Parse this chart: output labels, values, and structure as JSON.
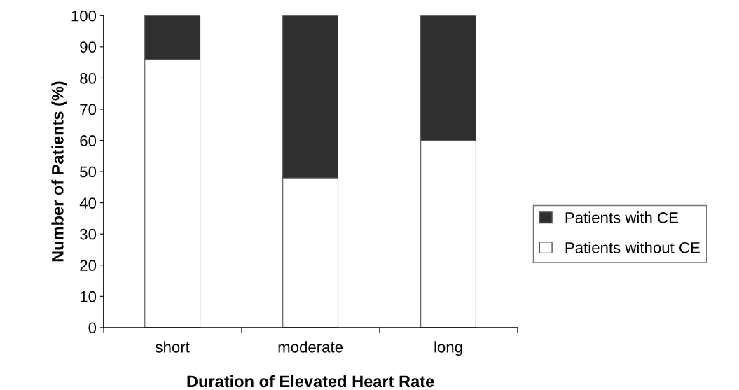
{
  "chart_data": {
    "type": "bar",
    "stacked": true,
    "xlabel": "Duration of Elevated Heart Rate",
    "ylabel": "Number of Patients (%)",
    "categories": [
      "short",
      "moderate",
      "long"
    ],
    "series": [
      {
        "name": "Patients without CE",
        "color": "#ffffff",
        "values": [
          86,
          48,
          60
        ]
      },
      {
        "name": "Patients with CE",
        "color": "#2f2f2f",
        "values": [
          14,
          52,
          40
        ]
      }
    ],
    "ylim": [
      0,
      100
    ],
    "yticks": [
      0,
      10,
      20,
      30,
      40,
      50,
      60,
      70,
      80,
      90,
      100
    ],
    "grid": false,
    "legend": "right"
  }
}
